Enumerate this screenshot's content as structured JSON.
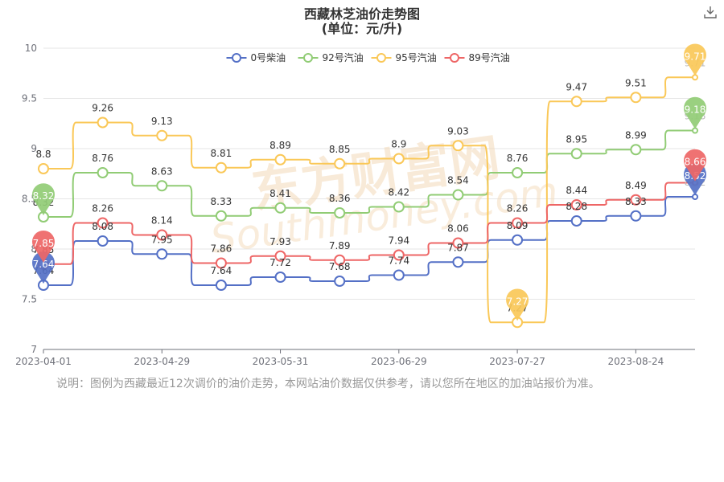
{
  "title": "西藏林芝油价走势图",
  "subtitle": "(单位：元/升)",
  "note": "说明：图例为西藏最近12次调价的油价走势，本网站油价数据仅供参考，请以您所在地区的加油站报价为准。",
  "watermark": {
    "cn": "东方财富网",
    "en": "Southmoney.com"
  },
  "toolbar": {
    "download_icon": "download-icon"
  },
  "chart_data": {
    "type": "line",
    "smooth": true,
    "x": [
      "2023-04-01",
      "2023-04-15",
      "2023-04-29",
      "2023-05-15",
      "2023-05-31",
      "2023-06-14",
      "2023-06-29",
      "2023-07-13",
      "2023-07-27",
      "2023-08-10",
      "2023-08-24",
      "2023-09-07"
    ],
    "x_tick_labels": [
      "2023-04-01",
      "2023-04-29",
      "2023-05-31",
      "2023-06-29",
      "2023-07-27",
      "2023-08-24"
    ],
    "ylim": [
      7,
      10
    ],
    "y_ticks": [
      "7",
      "7.5",
      "8",
      "8.5",
      "9",
      "9.5",
      "10"
    ],
    "grid": true,
    "legend_position": "top",
    "series": [
      {
        "name": "0号柴油",
        "color": "#5470c6",
        "values": [
          7.64,
          8.08,
          7.95,
          7.64,
          7.72,
          7.68,
          7.74,
          7.87,
          8.09,
          8.28,
          8.33,
          8.52
        ],
        "labels": [
          "7.64",
          "8.08",
          "7.95",
          "7.64",
          "7.72",
          "7.68",
          "7.74",
          "7.87",
          "8.09",
          "8.28",
          "8.33",
          "8.52"
        ]
      },
      {
        "name": "92号汽油",
        "color": "#91cc75",
        "values": [
          8.32,
          8.76,
          8.63,
          8.33,
          8.41,
          8.36,
          8.42,
          8.54,
          8.76,
          8.95,
          8.99,
          9.18
        ],
        "labels": [
          "8.32",
          "8.76",
          "8.63",
          "8.33",
          "8.41",
          "8.36",
          "8.42",
          "8.54",
          "8.76",
          "8.95",
          "8.99",
          "9.18"
        ]
      },
      {
        "name": "95号汽油",
        "color": "#fac858",
        "values": [
          8.8,
          9.26,
          9.13,
          8.81,
          8.89,
          8.85,
          8.9,
          9.03,
          7.27,
          9.47,
          9.51,
          9.71
        ],
        "labels": [
          "8.8",
          "9.26",
          "9.13",
          "8.81",
          "8.89",
          "8.85",
          "8.9",
          "9.03",
          "7.27",
          "9.47",
          "9.51",
          "9.71"
        ]
      },
      {
        "name": "89号汽油",
        "color": "#ee6666",
        "values": [
          7.85,
          8.26,
          8.14,
          7.86,
          7.93,
          7.89,
          7.94,
          8.06,
          8.26,
          8.44,
          8.49,
          8.66
        ],
        "labels": [
          "7.85",
          "8.26",
          "8.14",
          "7.86",
          "7.93",
          "7.89",
          "7.94",
          "8.06",
          "8.26",
          "8.44",
          "8.49",
          "8.66"
        ]
      }
    ],
    "markers": [
      {
        "series": "0号柴油",
        "index": 0,
        "label": "7.64"
      },
      {
        "series": "0号柴油",
        "index": 11,
        "label": "8.52"
      },
      {
        "series": "92号汽油",
        "index": 0,
        "label": "8.32"
      },
      {
        "series": "92号汽油",
        "index": 11,
        "label": "9.18"
      },
      {
        "series": "95号汽油",
        "index": 8,
        "label": "7.27"
      },
      {
        "series": "95号汽油",
        "index": 11,
        "label": "9.71"
      },
      {
        "series": "89号汽油",
        "index": 0,
        "label": "7.85"
      },
      {
        "series": "89号汽油",
        "index": 11,
        "label": "8.66"
      }
    ]
  }
}
